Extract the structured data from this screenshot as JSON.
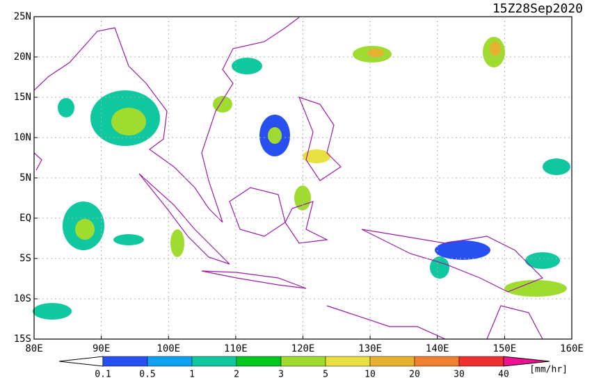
{
  "title": "15Z28Sep2020",
  "lon_labels": [
    {
      "value": 80,
      "label": "80E"
    },
    {
      "value": 90,
      "label": "90E"
    },
    {
      "value": 100,
      "label": "100E"
    },
    {
      "value": 110,
      "label": "110E"
    },
    {
      "value": 120,
      "label": "120E"
    },
    {
      "value": 130,
      "label": "130E"
    },
    {
      "value": 140,
      "label": "140E"
    },
    {
      "value": 150,
      "label": "150E"
    },
    {
      "value": 160,
      "label": "160E"
    }
  ],
  "lat_labels": [
    {
      "value": 25,
      "label": "25N"
    },
    {
      "value": 20,
      "label": "20N"
    },
    {
      "value": 15,
      "label": "15N"
    },
    {
      "value": 10,
      "label": "10N"
    },
    {
      "value": 5,
      "label": "5N"
    },
    {
      "value": 0,
      "label": "EQ"
    },
    {
      "value": -5,
      "label": "5S"
    },
    {
      "value": -10,
      "label": "10S"
    },
    {
      "value": -15,
      "label": "15S"
    }
  ],
  "colorbar": {
    "unit": "[mm/hr]",
    "labels": [
      "0.1",
      "0.5",
      "1",
      "2",
      "3",
      "5",
      "10",
      "20",
      "30",
      "40"
    ],
    "colors": [
      "#ffffff",
      "#2850f0",
      "#10a0f0",
      "#10c8a0",
      "#00c820",
      "#a0dc30",
      "#e8e040",
      "#e8b030",
      "#f08030",
      "#f03030",
      "#f01090"
    ]
  }
}
